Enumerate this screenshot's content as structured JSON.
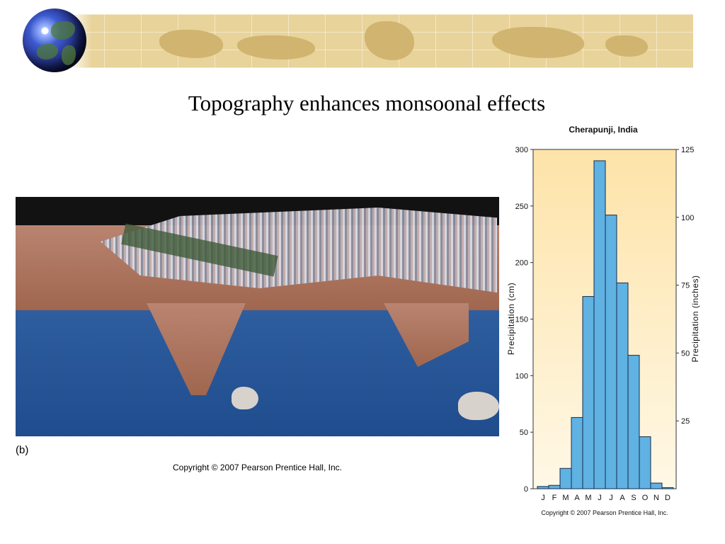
{
  "slide": {
    "title": "Topography enhances monsoonal effects",
    "figure_label": "(b)",
    "left_copyright": "Copyright © 2007 Pearson Prentice Hall, Inc."
  },
  "chart_data": {
    "type": "bar",
    "title": "Cherapunji, India",
    "categories": [
      "J",
      "F",
      "M",
      "A",
      "M",
      "J",
      "J",
      "A",
      "S",
      "O",
      "N",
      "D"
    ],
    "values": [
      2,
      3,
      18,
      63,
      170,
      290,
      242,
      182,
      118,
      46,
      5,
      1
    ],
    "ylabel": "Precipitation (cm)",
    "ylim": [
      0,
      300
    ],
    "yticks": [
      0,
      50,
      100,
      150,
      200,
      250,
      300
    ],
    "y2label": "Precipitation (inches)",
    "y2lim": [
      0,
      125
    ],
    "y2ticks": [
      25,
      50,
      75,
      100,
      125
    ],
    "copyright": "Copyright © 2007 Pearson Prentice Hall, Inc.",
    "bar_color": "#5fb2e2",
    "background_top": "#fde3a8",
    "background_bottom": "#fff8e6"
  }
}
